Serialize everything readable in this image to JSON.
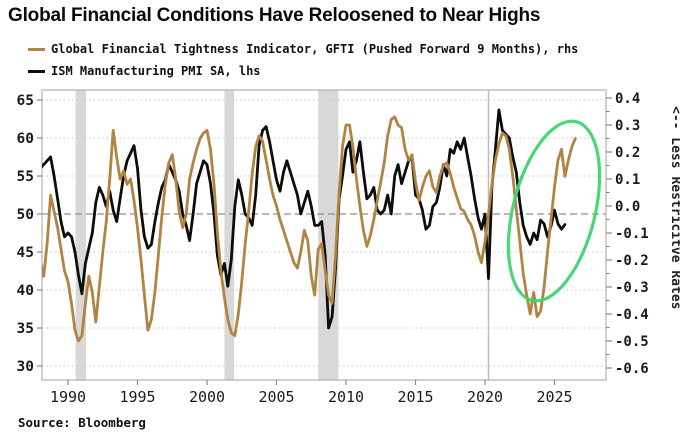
{
  "title": "Global Financial Conditions Have Reloosened to Near Highs",
  "source": "Source: Bloomberg",
  "right_axis_note": "<-- Less Restricitve Rates",
  "legend": [
    {
      "label": "Global Financial Tightness Indicator, GFTI (Pushed Forward 9 Months), rhs",
      "color": "#b08443"
    },
    {
      "label": "ISM Manufacturing PMI SA, lhs",
      "color": "#0d0d0d"
    }
  ],
  "colors": {
    "gfti": "#b08443",
    "ism": "#0d0d0d",
    "recession_band": "#d8d8d8",
    "gridline": "#c8c8c8",
    "zero_line": "#8f8f8f",
    "frame": "#b0b0b0",
    "event_line": "#bdbdbd",
    "highlight_ellipse": "#3fd46f",
    "tick": "#8a8a8a",
    "label": "#1a1a1a"
  },
  "chart_data": {
    "type": "line",
    "title": "Global Financial Conditions Have Reloosened to Near Highs",
    "x_axis": {
      "tick_years": [
        1990,
        1995,
        2000,
        2005,
        2010,
        2015,
        2020,
        2025
      ],
      "range": [
        1988.1,
        2028.8
      ]
    },
    "left_axis": {
      "side": "lhs",
      "ticks": [
        65,
        60,
        55,
        50,
        45,
        40,
        35,
        30
      ],
      "range": [
        30,
        65
      ],
      "series": "ISM Manufacturing PMI SA"
    },
    "right_axis": {
      "side": "rhs",
      "ticks": [
        0.4,
        0.3,
        0.2,
        0.1,
        0.0,
        -0.1,
        -0.2,
        -0.3,
        -0.4,
        -0.5,
        -0.6
      ],
      "minor_step": 0.05,
      "range": [
        -0.6,
        0.4
      ],
      "series": "GFTI"
    },
    "grid": "dotted horizontal at lhs ticks; darker dashed line at lhs 50 / rhs 0.0",
    "recession_bands_years": [
      [
        1990.55,
        1991.3
      ],
      [
        2001.25,
        2001.95
      ],
      [
        2008.0,
        2009.45
      ]
    ],
    "event_line_year": 2020.25,
    "highlight_ellipse": {
      "center_year": 2025.15,
      "center_rhs_value": -0.01,
      "note": "circles recent GFTI reloosening vs flat ISM"
    },
    "series": [
      {
        "name": "ISM Manufacturing PMI SA, lhs",
        "axis": "lhs",
        "color": "#0d0d0d",
        "start": 1988.0,
        "step": 0.25,
        "values": [
          56,
          56.5,
          57,
          57.5,
          55,
          52,
          49,
          47,
          47.5,
          47,
          45,
          42,
          39.5,
          43.5,
          45.5,
          47.5,
          51.5,
          53.5,
          52.5,
          51,
          53,
          50.5,
          49,
          52,
          55,
          57,
          58,
          59,
          56,
          50.5,
          47,
          45.5,
          46,
          49,
          51.5,
          53.5,
          54.5,
          56.5,
          55.5,
          54.5,
          53,
          50,
          48.5,
          46.5,
          50,
          54,
          55.5,
          57,
          56.5,
          54,
          50,
          44.5,
          42,
          43.5,
          40.5,
          44,
          51,
          54.5,
          52.5,
          50,
          49.5,
          48.5,
          52.5,
          59,
          61,
          61.5,
          59.5,
          57,
          54.5,
          53,
          55.5,
          57,
          55.5,
          54,
          52.5,
          50,
          51.5,
          53,
          51,
          48.5,
          48.5,
          49,
          44.5,
          35,
          36.5,
          43,
          52,
          55,
          58.5,
          59.5,
          55.5,
          57,
          59.5,
          55.5,
          52,
          52.5,
          53.5,
          50.5,
          50,
          50.5,
          52.5,
          50,
          55,
          56.5,
          54,
          55.5,
          57,
          57.5,
          52.5,
          52,
          50.5,
          48,
          48.5,
          51,
          51.5,
          53.5,
          56.5,
          55,
          58.5,
          58,
          59.5,
          58.5,
          60,
          57.5,
          55,
          52,
          49.5,
          48,
          50,
          41.5,
          53.5,
          58.5,
          63.7,
          61,
          60.5,
          60,
          57.5,
          55.5,
          51.5,
          48.5,
          47,
          46,
          47.5,
          46.6,
          49.2,
          48.7,
          47,
          48.4,
          50.5,
          48.7,
          48,
          48.6
        ]
      },
      {
        "name": "Global Financial Tightness Indicator, GFTI (Pushed Forward 9 Months), rhs",
        "axis": "rhs",
        "color": "#b08443",
        "start": 1988.0,
        "step": 0.25,
        "values": [
          -0.2,
          -0.26,
          -0.14,
          0.04,
          -0.02,
          -0.08,
          -0.16,
          -0.24,
          -0.28,
          -0.36,
          -0.46,
          -0.5,
          -0.48,
          -0.36,
          -0.26,
          -0.32,
          -0.43,
          -0.3,
          -0.17,
          -0.06,
          0.1,
          0.28,
          0.18,
          0.1,
          0.13,
          0.08,
          0.1,
          0.02,
          -0.08,
          -0.2,
          -0.33,
          -0.46,
          -0.42,
          -0.32,
          -0.18,
          -0.04,
          0.08,
          0.16,
          0.19,
          0.1,
          -0.02,
          -0.08,
          -0.03,
          0.1,
          0.16,
          0.21,
          0.25,
          0.27,
          0.28,
          0.21,
          0.08,
          -0.1,
          -0.24,
          -0.34,
          -0.42,
          -0.47,
          -0.48,
          -0.4,
          -0.28,
          -0.14,
          -0.02,
          0.12,
          0.22,
          0.26,
          0.24,
          0.17,
          0.1,
          0.04,
          0.0,
          -0.05,
          -0.09,
          -0.13,
          -0.17,
          -0.21,
          -0.23,
          -0.17,
          -0.09,
          -0.13,
          -0.26,
          -0.33,
          -0.16,
          -0.14,
          -0.24,
          -0.33,
          -0.36,
          -0.18,
          0.05,
          0.22,
          0.3,
          0.3,
          0.22,
          0.1,
          0.0,
          -0.09,
          -0.15,
          -0.11,
          -0.05,
          0.02,
          0.09,
          0.16,
          0.26,
          0.32,
          0.33,
          0.3,
          0.29,
          0.21,
          0.17,
          0.19,
          0.09,
          0.02,
          0.07,
          0.11,
          0.13,
          0.07,
          0.05,
          0.11,
          0.15,
          0.16,
          0.12,
          0.07,
          0.03,
          -0.01,
          -0.02,
          -0.05,
          -0.07,
          -0.11,
          -0.17,
          -0.21,
          -0.13,
          -0.03,
          0.08,
          0.17,
          0.23,
          0.27,
          0.26,
          0.21,
          0.11,
          -0.01,
          -0.13,
          -0.25,
          -0.33,
          -0.4,
          -0.32,
          -0.41,
          -0.39,
          -0.3,
          -0.17,
          -0.05,
          0.07,
          0.17,
          0.21,
          0.11,
          0.17,
          0.22,
          0.25
        ]
      }
    ]
  }
}
